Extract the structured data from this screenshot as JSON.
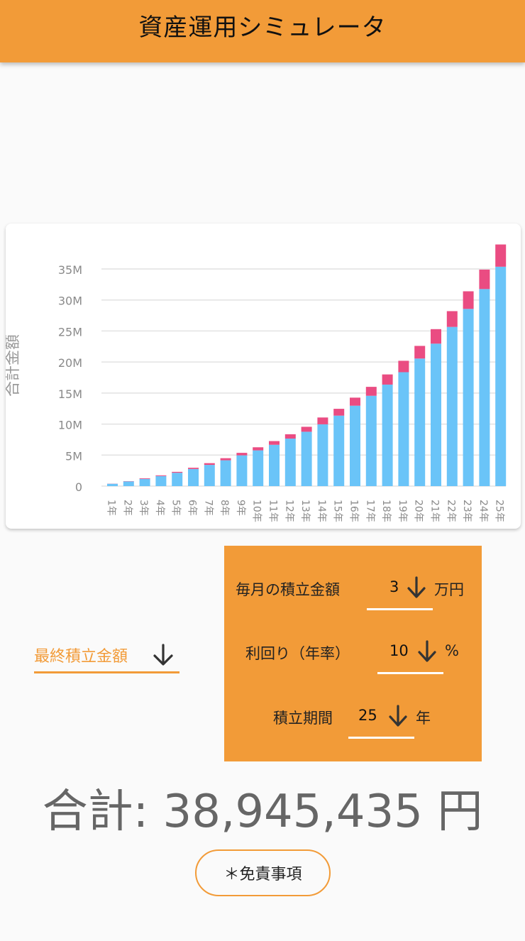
{
  "app": {
    "title": "資産運用シミュレータ",
    "accent_color": "#f29b38"
  },
  "chart_data": {
    "type": "bar",
    "stacked": true,
    "ylabel": "合計金額",
    "xlabel": "",
    "categories": [
      "1年",
      "2年",
      "3年",
      "4年",
      "5年",
      "6年",
      "7年",
      "8年",
      "9年",
      "10年",
      "11年",
      "12年",
      "13年",
      "14年",
      "15年",
      "16年",
      "17年",
      "18年",
      "19年",
      "20年",
      "21年",
      "22年",
      "23年",
      "24年",
      "25年"
    ],
    "yticks": [
      "0",
      "5M",
      "10M",
      "15M",
      "20M",
      "25M",
      "30M",
      "35M"
    ],
    "ylim": [
      0,
      40000000
    ],
    "grid": true,
    "series": [
      {
        "color": "#6ac4f8",
        "values": [
          380000,
          760000,
          1160000,
          1620000,
          2150000,
          2760000,
          3420000,
          4160000,
          4960000,
          5760000,
          6660000,
          7660000,
          8760000,
          9960000,
          11360000,
          12960000,
          14560000,
          16360000,
          18360000,
          20560000,
          22960000,
          25660000,
          28560000,
          31760000,
          35360000
        ]
      },
      {
        "color": "#ea4c82",
        "values": [
          20000,
          40000,
          100000,
          120000,
          150000,
          200000,
          280000,
          340000,
          400000,
          500000,
          600000,
          700000,
          800000,
          1100000,
          1100000,
          1300000,
          1440000,
          1640000,
          1840000,
          2040000,
          2340000,
          2540000,
          2840000,
          3140000,
          3585435
        ]
      }
    ]
  },
  "params": {
    "monthly": {
      "label": "毎月の積立金額",
      "value": "3",
      "unit": "万円"
    },
    "yield": {
      "label": "利回り（年率）",
      "value": "10",
      "unit": "%"
    },
    "period": {
      "label": "積立期間",
      "value": "25",
      "unit": "年"
    }
  },
  "final_dropdown": {
    "label": "最終積立金額"
  },
  "total": {
    "text": "合計: 38,945,435 円"
  },
  "disclaimer": {
    "label": "＊免責事項"
  },
  "icons": {
    "dropdown": "arrow-down-icon"
  }
}
